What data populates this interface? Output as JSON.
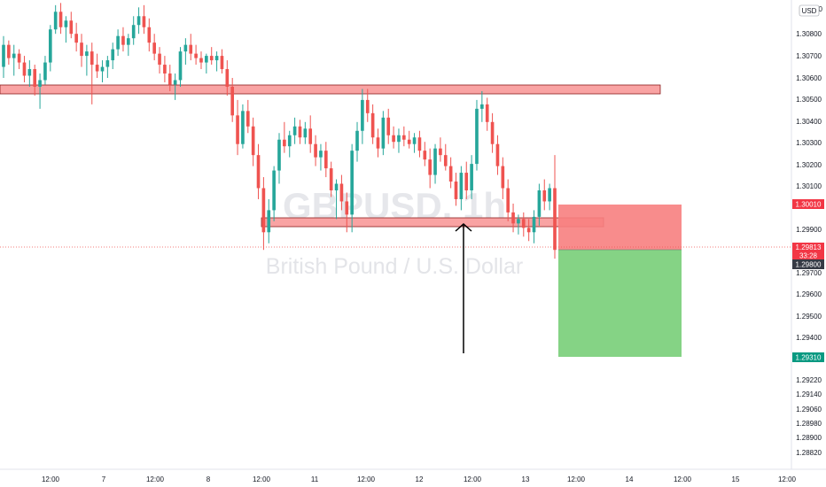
{
  "chart_data": {
    "type": "candlestick",
    "symbol": "GBPUSD, 1h",
    "description": "British Pound / U.S. Dollar",
    "currency": "USD",
    "y_ticks": [
      "1.30800",
      "1.30700",
      "1.30600",
      "1.30500",
      "1.30400",
      "1.30300",
      "1.30200",
      "1.30100",
      "1.29900",
      "1.29700",
      "1.29600",
      "1.29500",
      "1.29400",
      "1.29220",
      "1.29140",
      "1.29060",
      "1.28980",
      "1.28900",
      "1.28820"
    ],
    "top_partial_tick": "0",
    "x_ticks": [
      "12:00",
      "7",
      "12:00",
      "8",
      "12:00",
      "11",
      "12:00",
      "12",
      "12:00",
      "13",
      "12:00",
      "14",
      "12:00",
      "15",
      "12:00"
    ],
    "price_labels": {
      "stop": "1.30010",
      "current": "1.29813",
      "countdown": "33:28",
      "entry": "1.29800",
      "target": "1.29310"
    },
    "zones": [
      {
        "name": "resistance",
        "low": 1.30525,
        "high": 1.30545
      },
      {
        "name": "support",
        "low": 1.29905,
        "high": 1.29925
      }
    ],
    "position": {
      "side": "short",
      "entry": 1.298,
      "stop": 1.3001,
      "target": 1.2931
    },
    "colors": {
      "up": "#26a69a",
      "down": "#ef5350",
      "zone_fill": "#f9a3a3",
      "stop_fill": "#f77f7f",
      "target_fill": "#7ed17e",
      "stop_label": "#f23645",
      "target_label": "#089981",
      "price_label": "#363a45"
    },
    "candles": [
      {
        "o": 1.3065,
        "h": 1.3079,
        "l": 1.306,
        "c": 1.3075
      },
      {
        "o": 1.3075,
        "h": 1.3077,
        "l": 1.3066,
        "c": 1.3069
      },
      {
        "o": 1.3069,
        "h": 1.3075,
        "l": 1.3061,
        "c": 1.3071
      },
      {
        "o": 1.3071,
        "h": 1.3073,
        "l": 1.3064,
        "c": 1.3067
      },
      {
        "o": 1.3067,
        "h": 1.307,
        "l": 1.3058,
        "c": 1.3061
      },
      {
        "o": 1.3061,
        "h": 1.3068,
        "l": 1.3056,
        "c": 1.3064
      },
      {
        "o": 1.3064,
        "h": 1.3066,
        "l": 1.3052,
        "c": 1.3056
      },
      {
        "o": 1.3056,
        "h": 1.3062,
        "l": 1.3046,
        "c": 1.3059
      },
      {
        "o": 1.3059,
        "h": 1.307,
        "l": 1.3057,
        "c": 1.3067
      },
      {
        "o": 1.3067,
        "h": 1.3084,
        "l": 1.3063,
        "c": 1.3082
      },
      {
        "o": 1.3082,
        "h": 1.3093,
        "l": 1.308,
        "c": 1.309
      },
      {
        "o": 1.309,
        "h": 1.3094,
        "l": 1.308,
        "c": 1.3083
      },
      {
        "o": 1.3083,
        "h": 1.3088,
        "l": 1.3076,
        "c": 1.3086
      },
      {
        "o": 1.3086,
        "h": 1.309,
        "l": 1.3078,
        "c": 1.308
      },
      {
        "o": 1.308,
        "h": 1.3085,
        "l": 1.3072,
        "c": 1.3076
      },
      {
        "o": 1.3076,
        "h": 1.308,
        "l": 1.3065,
        "c": 1.307
      },
      {
        "o": 1.307,
        "h": 1.3075,
        "l": 1.3061,
        "c": 1.3072
      },
      {
        "o": 1.3072,
        "h": 1.3076,
        "l": 1.3048,
        "c": 1.3066
      },
      {
        "o": 1.3066,
        "h": 1.3071,
        "l": 1.306,
        "c": 1.3063
      },
      {
        "o": 1.3063,
        "h": 1.3068,
        "l": 1.3058,
        "c": 1.3065
      },
      {
        "o": 1.3065,
        "h": 1.307,
        "l": 1.306,
        "c": 1.3068
      },
      {
        "o": 1.3068,
        "h": 1.3076,
        "l": 1.3064,
        "c": 1.3073
      },
      {
        "o": 1.3073,
        "h": 1.3082,
        "l": 1.307,
        "c": 1.3079
      },
      {
        "o": 1.3079,
        "h": 1.3083,
        "l": 1.3072,
        "c": 1.3075
      },
      {
        "o": 1.3075,
        "h": 1.308,
        "l": 1.307,
        "c": 1.3078
      },
      {
        "o": 1.3078,
        "h": 1.3088,
        "l": 1.3075,
        "c": 1.3084
      },
      {
        "o": 1.3084,
        "h": 1.3092,
        "l": 1.308,
        "c": 1.3088
      },
      {
        "o": 1.3088,
        "h": 1.3093,
        "l": 1.308,
        "c": 1.3083
      },
      {
        "o": 1.3083,
        "h": 1.3087,
        "l": 1.3072,
        "c": 1.3076
      },
      {
        "o": 1.3076,
        "h": 1.308,
        "l": 1.3068,
        "c": 1.3071
      },
      {
        "o": 1.3071,
        "h": 1.3074,
        "l": 1.3062,
        "c": 1.3066
      },
      {
        "o": 1.3066,
        "h": 1.307,
        "l": 1.3058,
        "c": 1.3062
      },
      {
        "o": 1.3062,
        "h": 1.3066,
        "l": 1.3054,
        "c": 1.3057
      },
      {
        "o": 1.3057,
        "h": 1.3062,
        "l": 1.305,
        "c": 1.3059
      },
      {
        "o": 1.3059,
        "h": 1.3074,
        "l": 1.3056,
        "c": 1.3072
      },
      {
        "o": 1.3072,
        "h": 1.3078,
        "l": 1.3066,
        "c": 1.3075
      },
      {
        "o": 1.3075,
        "h": 1.308,
        "l": 1.3068,
        "c": 1.3071
      },
      {
        "o": 1.3071,
        "h": 1.3075,
        "l": 1.3066,
        "c": 1.3069
      },
      {
        "o": 1.3069,
        "h": 1.3072,
        "l": 1.3064,
        "c": 1.3067
      },
      {
        "o": 1.3067,
        "h": 1.3071,
        "l": 1.3062,
        "c": 1.307
      },
      {
        "o": 1.307,
        "h": 1.3074,
        "l": 1.3066,
        "c": 1.3068
      },
      {
        "o": 1.3068,
        "h": 1.3072,
        "l": 1.3063,
        "c": 1.307
      },
      {
        "o": 1.307,
        "h": 1.3073,
        "l": 1.3062,
        "c": 1.3064
      },
      {
        "o": 1.3064,
        "h": 1.3068,
        "l": 1.3052,
        "c": 1.3056
      },
      {
        "o": 1.3056,
        "h": 1.306,
        "l": 1.304,
        "c": 1.3043
      },
      {
        "o": 1.3043,
        "h": 1.305,
        "l": 1.3025,
        "c": 1.303
      },
      {
        "o": 1.303,
        "h": 1.3048,
        "l": 1.3028,
        "c": 1.3045
      },
      {
        "o": 1.3045,
        "h": 1.305,
        "l": 1.3035,
        "c": 1.3038
      },
      {
        "o": 1.3038,
        "h": 1.3042,
        "l": 1.302,
        "c": 1.3025
      },
      {
        "o": 1.3025,
        "h": 1.303,
        "l": 1.3005,
        "c": 1.301
      },
      {
        "o": 1.301,
        "h": 1.3015,
        "l": 1.2982,
        "c": 1.299
      },
      {
        "o": 1.299,
        "h": 1.3005,
        "l": 1.2985,
        "c": 1.3
      },
      {
        "o": 1.3,
        "h": 1.302,
        "l": 1.2995,
        "c": 1.3018
      },
      {
        "o": 1.3018,
        "h": 1.3035,
        "l": 1.3012,
        "c": 1.3032
      },
      {
        "o": 1.3032,
        "h": 1.304,
        "l": 1.3026,
        "c": 1.3029
      },
      {
        "o": 1.3029,
        "h": 1.3036,
        "l": 1.3024,
        "c": 1.3034
      },
      {
        "o": 1.3034,
        "h": 1.3042,
        "l": 1.303,
        "c": 1.3038
      },
      {
        "o": 1.3038,
        "h": 1.3041,
        "l": 1.303,
        "c": 1.3033
      },
      {
        "o": 1.3033,
        "h": 1.304,
        "l": 1.303,
        "c": 1.3037
      },
      {
        "o": 1.3037,
        "h": 1.3043,
        "l": 1.3026,
        "c": 1.303
      },
      {
        "o": 1.303,
        "h": 1.3034,
        "l": 1.302,
        "c": 1.3024
      },
      {
        "o": 1.3024,
        "h": 1.303,
        "l": 1.3018,
        "c": 1.3027
      },
      {
        "o": 1.3027,
        "h": 1.3031,
        "l": 1.3015,
        "c": 1.3019
      },
      {
        "o": 1.3019,
        "h": 1.3022,
        "l": 1.3006,
        "c": 1.3009
      },
      {
        "o": 1.3009,
        "h": 1.3014,
        "l": 1.2996,
        "c": 1.3012
      },
      {
        "o": 1.3012,
        "h": 1.3016,
        "l": 1.3,
        "c": 1.3004
      },
      {
        "o": 1.3004,
        "h": 1.3008,
        "l": 1.299,
        "c": 1.2998
      },
      {
        "o": 1.2998,
        "h": 1.303,
        "l": 1.299,
        "c": 1.3027
      },
      {
        "o": 1.3027,
        "h": 1.304,
        "l": 1.3022,
        "c": 1.3036
      },
      {
        "o": 1.3036,
        "h": 1.3055,
        "l": 1.303,
        "c": 1.305
      },
      {
        "o": 1.305,
        "h": 1.3055,
        "l": 1.304,
        "c": 1.3044
      },
      {
        "o": 1.3044,
        "h": 1.3048,
        "l": 1.303,
        "c": 1.3033
      },
      {
        "o": 1.3033,
        "h": 1.3037,
        "l": 1.3024,
        "c": 1.3028
      },
      {
        "o": 1.3028,
        "h": 1.3045,
        "l": 1.3025,
        "c": 1.3042
      },
      {
        "o": 1.3042,
        "h": 1.3046,
        "l": 1.303,
        "c": 1.3034
      },
      {
        "o": 1.3034,
        "h": 1.3038,
        "l": 1.3028,
        "c": 1.3031
      },
      {
        "o": 1.3031,
        "h": 1.3037,
        "l": 1.3026,
        "c": 1.3034
      },
      {
        "o": 1.3034,
        "h": 1.3038,
        "l": 1.3029,
        "c": 1.3032
      },
      {
        "o": 1.3032,
        "h": 1.3036,
        "l": 1.3028,
        "c": 1.303
      },
      {
        "o": 1.303,
        "h": 1.3035,
        "l": 1.3026,
        "c": 1.3033
      },
      {
        "o": 1.3033,
        "h": 1.3036,
        "l": 1.3024,
        "c": 1.3027
      },
      {
        "o": 1.3027,
        "h": 1.3031,
        "l": 1.302,
        "c": 1.3023
      },
      {
        "o": 1.3023,
        "h": 1.3028,
        "l": 1.301,
        "c": 1.3016
      },
      {
        "o": 1.3016,
        "h": 1.303,
        "l": 1.3012,
        "c": 1.3028
      },
      {
        "o": 1.3028,
        "h": 1.3033,
        "l": 1.3022,
        "c": 1.3025
      },
      {
        "o": 1.3025,
        "h": 1.303,
        "l": 1.3018,
        "c": 1.302
      },
      {
        "o": 1.302,
        "h": 1.3024,
        "l": 1.301,
        "c": 1.3013
      },
      {
        "o": 1.3013,
        "h": 1.3017,
        "l": 1.3002,
        "c": 1.3005
      },
      {
        "o": 1.3005,
        "h": 1.302,
        "l": 1.3,
        "c": 1.3017
      },
      {
        "o": 1.3017,
        "h": 1.3022,
        "l": 1.3005,
        "c": 1.3009
      },
      {
        "o": 1.3009,
        "h": 1.3025,
        "l": 1.3005,
        "c": 1.3021
      },
      {
        "o": 1.3021,
        "h": 1.305,
        "l": 1.3018,
        "c": 1.3046
      },
      {
        "o": 1.3046,
        "h": 1.3054,
        "l": 1.304,
        "c": 1.3048
      },
      {
        "o": 1.3048,
        "h": 1.3051,
        "l": 1.3036,
        "c": 1.304
      },
      {
        "o": 1.304,
        "h": 1.3044,
        "l": 1.3026,
        "c": 1.303
      },
      {
        "o": 1.303,
        "h": 1.3034,
        "l": 1.3016,
        "c": 1.302
      },
      {
        "o": 1.302,
        "h": 1.3024,
        "l": 1.3005,
        "c": 1.301
      },
      {
        "o": 1.301,
        "h": 1.3014,
        "l": 1.2995,
        "c": 1.2999
      },
      {
        "o": 1.2999,
        "h": 1.3003,
        "l": 1.299,
        "c": 1.2994
      },
      {
        "o": 1.2994,
        "h": 1.2998,
        "l": 1.2989,
        "c": 1.2996
      },
      {
        "o": 1.2996,
        "h": 1.2999,
        "l": 1.2988,
        "c": 1.2992
      },
      {
        "o": 1.2992,
        "h": 1.2996,
        "l": 1.2986,
        "c": 1.299
      },
      {
        "o": 1.299,
        "h": 1.3,
        "l": 1.2985,
        "c": 1.2997
      },
      {
        "o": 1.2997,
        "h": 1.3012,
        "l": 1.2993,
        "c": 1.3009
      },
      {
        "o": 1.3009,
        "h": 1.3014,
        "l": 1.3,
        "c": 1.3004
      },
      {
        "o": 1.3004,
        "h": 1.3012,
        "l": 1.3,
        "c": 1.301
      },
      {
        "o": 1.301,
        "h": 1.3025,
        "l": 1.2978,
        "c": 1.2982
      }
    ]
  }
}
